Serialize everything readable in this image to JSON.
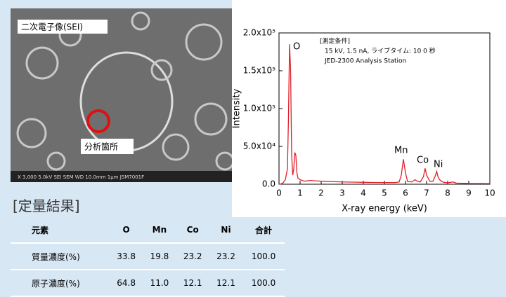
{
  "image": {
    "mode": "二次電子像(SEI)",
    "spot": "分析箇所",
    "info": "X 3,000    5.0kV   SEI    SEM    WD 10.0mm    1μm   JSM7001F"
  },
  "chart_data": {
    "type": "line",
    "xlabel": "X-ray energy (keV)",
    "ylabel": "Intensity",
    "annotations": [
      "O",
      "Mn",
      "Co",
      "Ni"
    ],
    "conditions": [
      "[測定条件]",
      "15 kV, 1.5 nA, ライブタイム: 10 0  秒",
      "JED-2300 Analysis Station"
    ],
    "x": [
      0,
      0.1,
      0.2,
      0.3,
      0.4,
      0.45,
      0.5,
      0.55,
      0.6,
      0.65,
      0.7,
      0.75,
      0.8,
      0.85,
      0.9,
      1.0,
      1.2,
      1.5,
      1.7,
      2.0,
      2.5,
      3.0,
      3.5,
      4.0,
      4.5,
      5.0,
      5.5,
      5.7,
      5.8,
      5.9,
      6.0,
      6.1,
      6.3,
      6.45,
      6.55,
      6.7,
      6.85,
      6.93,
      7.0,
      7.15,
      7.3,
      7.4,
      7.48,
      7.55,
      7.65,
      7.8,
      8.0,
      8.26,
      8.4,
      9.0,
      10.0
    ],
    "series": [
      {
        "color": "#e0202a",
        "values": [
          0,
          500,
          2000,
          6000,
          20000,
          90000,
          185000,
          150000,
          40000,
          12000,
          20000,
          42000,
          38000,
          15000,
          8000,
          6000,
          4000,
          5000,
          4500,
          4000,
          3500,
          3000,
          2800,
          2500,
          2300,
          2200,
          2200,
          3000,
          12000,
          33000,
          15000,
          3500,
          3000,
          6000,
          4000,
          3000,
          10000,
          21000,
          12000,
          4000,
          4000,
          10000,
          17000,
          9000,
          5000,
          2500,
          1800,
          3000,
          1500,
          1000,
          800
        ]
      }
    ],
    "xlim": [
      0,
      10
    ],
    "xticks": [
      0,
      1,
      2,
      3,
      4,
      5,
      6,
      7,
      8,
      9,
      10
    ],
    "ylim": [
      0,
      200000
    ],
    "yticks": [
      {
        "value": 0,
        "label": "0.0"
      },
      {
        "value": 50000,
        "label": "5.0x10⁴"
      },
      {
        "value": 100000,
        "label": "1.0x10⁵"
      },
      {
        "value": 150000,
        "label": "1.5x10⁵"
      },
      {
        "value": 200000,
        "label": "2.0x10⁵"
      }
    ]
  },
  "table": {
    "title": "[定量結果]",
    "rows": [
      [
        "元素",
        "O",
        "Mn",
        "Co",
        "Ni",
        "合計"
      ],
      [
        "質量濃度(%)",
        "33.8",
        "19.8",
        "23.2",
        "23.2",
        "100.0"
      ],
      [
        "原子濃度(%)",
        "64.8",
        "11.0",
        "12.1",
        "12.1",
        "100.0"
      ]
    ]
  }
}
